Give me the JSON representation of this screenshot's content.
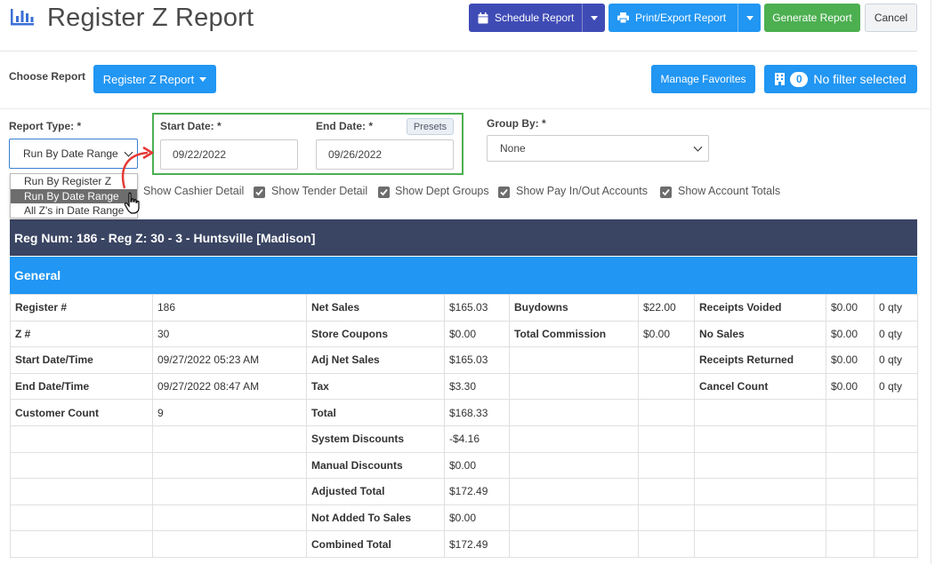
{
  "header": {
    "title": "Register Z Report",
    "schedule_label": "Schedule Report",
    "print_label": "Print/Export Report",
    "generate_label": "Generate Report",
    "cancel_label": "Cancel"
  },
  "choose": {
    "label": "Choose Report",
    "report_button": "Register Z Report",
    "favorites_button": "Manage Favorites",
    "filter_count": "0",
    "filter_label": "No filter selected"
  },
  "filters": {
    "report_type_label": "Report Type: *",
    "report_type_value": "Run By Date Range",
    "report_type_options": [
      "Run By Register Z",
      "Run By Date Range",
      "All Z's in Date Range"
    ],
    "start_date_label": "Start Date: *",
    "start_date_value": "09/22/2022",
    "end_date_label": "End Date: *",
    "end_date_value": "09/26/2022",
    "presets_label": "Presets",
    "group_by_label": "Group By: *",
    "group_by_value": "None"
  },
  "checkboxes": [
    {
      "label": "Show Cashier Detail",
      "checked": true
    },
    {
      "label": "Show Tender Detail",
      "checked": true
    },
    {
      "label": "Show Dept Groups",
      "checked": true
    },
    {
      "label": "Show Pay In/Out Accounts",
      "checked": true
    },
    {
      "label": "Show Account Totals",
      "checked": true
    }
  ],
  "report": {
    "reg_header": "Reg Num: 186 - Reg Z: 30 - 3 - Huntsville [Madison]",
    "section_title": "General",
    "rows": [
      [
        "Register #",
        "186",
        "Net Sales",
        "$165.03",
        "Buydowns",
        "$22.00",
        "Receipts Voided",
        "$0.00",
        "0 qty"
      ],
      [
        "Z #",
        "30",
        "Store Coupons",
        "$0.00",
        "Total Commission",
        "$0.00",
        "No Sales",
        "$0.00",
        "0 qty"
      ],
      [
        "Start Date/Time",
        "09/27/2022 05:23 AM",
        "Adj Net Sales",
        "$165.03",
        "",
        "",
        "Receipts Returned",
        "$0.00",
        "0 qty"
      ],
      [
        "End Date/Time",
        "09/27/2022 08:47 AM",
        "Tax",
        "$3.30",
        "",
        "",
        "Cancel Count",
        "$0.00",
        "0 qty"
      ],
      [
        "Customer Count",
        "9",
        "Total",
        "$168.33",
        "",
        "",
        "",
        "",
        ""
      ],
      [
        "",
        "",
        "System Discounts",
        "-$4.16",
        "",
        "",
        "",
        "",
        ""
      ],
      [
        "",
        "",
        "Manual Discounts",
        "$0.00",
        "",
        "",
        "",
        "",
        ""
      ],
      [
        "",
        "",
        "Adjusted Total",
        "$172.49",
        "",
        "",
        "",
        "",
        ""
      ],
      [
        "",
        "",
        "Not Added To Sales",
        "$0.00",
        "",
        "",
        "",
        "",
        ""
      ],
      [
        "",
        "",
        "Combined Total",
        "$172.49",
        "",
        "",
        "",
        "",
        ""
      ]
    ]
  },
  "colors": {
    "primary": "#2196f3",
    "schedule": "#3f4bb5",
    "generate": "#4caf50",
    "reg_header_bg": "#3a4563",
    "highlight_border": "#4caf50",
    "annotation_arrow": "#e53935"
  },
  "icons": [
    "bar-chart-icon",
    "calendar-icon",
    "printer-icon",
    "building-icon",
    "hand-cursor-icon"
  ]
}
